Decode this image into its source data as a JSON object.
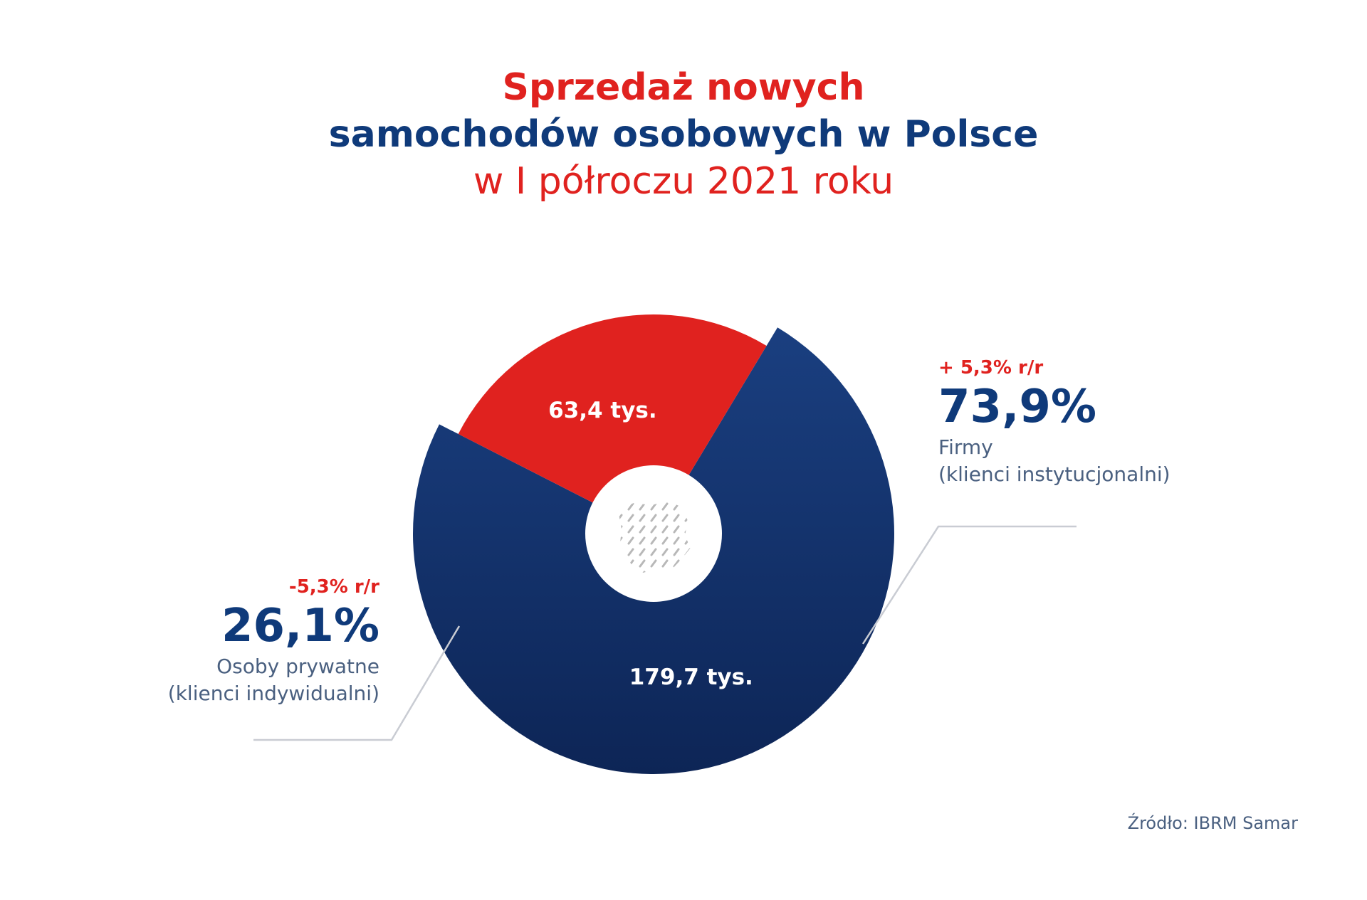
{
  "title": {
    "line1": "Sprzedaż nowych",
    "line2": "samochodów osobowych w Polsce",
    "line3": "w I półroczu 2021 roku"
  },
  "colors": {
    "red": "#e0221f",
    "navy": "#0f3a7a",
    "navy_dark": "#0d2556",
    "text_gray": "#4a6080",
    "leader": "#c9ccd3",
    "hole": "#ffffff",
    "hatch": "#b8b8b8"
  },
  "chart_data": {
    "type": "pie",
    "title": "Sprzedaż nowych samochodów osobowych w Polsce w I półroczu 2021 roku",
    "slices": [
      {
        "label": "Firmy (klienci instytucjonalni)",
        "percent": 73.9,
        "value": 179.7,
        "value_label": "179,7 tys.",
        "change_label": "+ 5,3% r/r",
        "percent_label": "73,9%",
        "name_line1": "Firmy",
        "name_line2": "(klienci instytucjonalni)",
        "color": "#0d2556"
      },
      {
        "label": "Osoby prywatne (klienci indywidualni)",
        "percent": 26.1,
        "value": 63.4,
        "value_label": "63,4 tys.",
        "change_label": "-5,3% r/r",
        "percent_label": "26,1%",
        "name_line1": "Osoby prywatne",
        "name_line2": "(klienci indywidualni)",
        "color": "#e0221f"
      }
    ]
  },
  "source": "Źródło: IBRM Samar"
}
